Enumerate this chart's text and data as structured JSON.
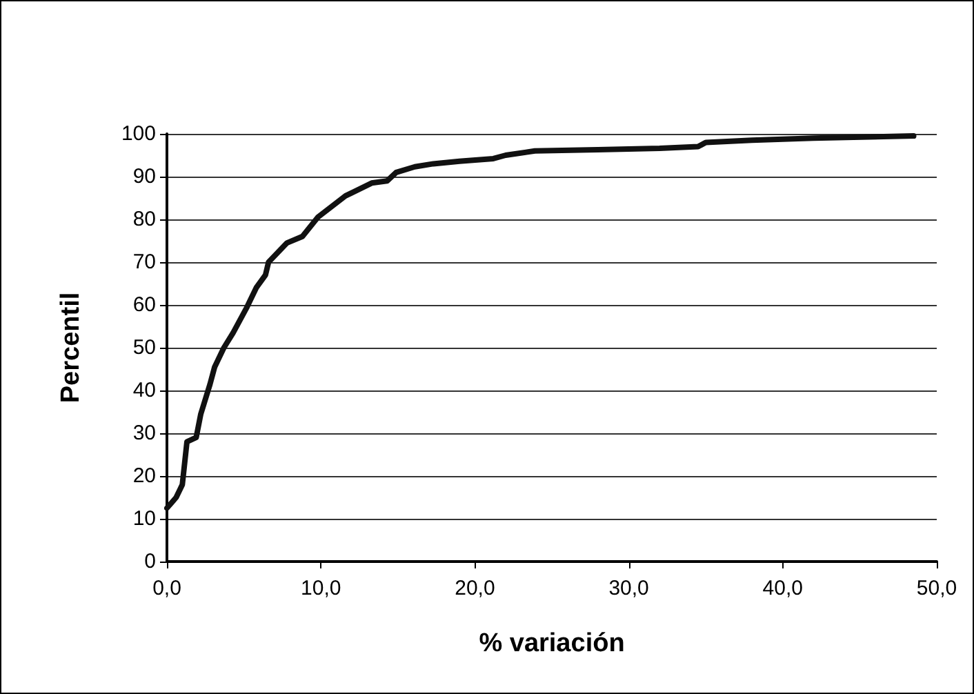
{
  "chart_data": {
    "type": "line",
    "xlabel": "% variación",
    "ylabel": "Percentil",
    "x": [
      0,
      0.6,
      1,
      1.3,
      1.9,
      2.2,
      2.8,
      3.1,
      3.7,
      4.3,
      5.2,
      5.8,
      6.4,
      6.6,
      7.8,
      8.8,
      9.8,
      10.7,
      11.6,
      13.3,
      14.3,
      14.9,
      16.1,
      17.3,
      19,
      21.2,
      22,
      23.9,
      28,
      32,
      34.5,
      35,
      38,
      42,
      48.5
    ],
    "series": [
      {
        "color": "#111111",
        "values": [
          12.5,
          15,
          18,
          28,
          29,
          34.5,
          41.5,
          45.5,
          50,
          53.5,
          59.5,
          64,
          67,
          70,
          74.5,
          76,
          80.5,
          83,
          85.5,
          88.5,
          89,
          91,
          92.3,
          93,
          93.6,
          94.2,
          95,
          96,
          96.3,
          96.6,
          97,
          98,
          98.5,
          99,
          99.5
        ]
      }
    ],
    "xlim": [
      0,
      50
    ],
    "xticks": [
      {
        "value": 0,
        "label": "0,0"
      },
      {
        "value": 10,
        "label": "10,0"
      },
      {
        "value": 20,
        "label": "20,0"
      },
      {
        "value": 30,
        "label": "30,0"
      },
      {
        "value": 40,
        "label": "40,0"
      },
      {
        "value": 50,
        "label": "50,0"
      }
    ],
    "ylim": [
      0,
      100
    ],
    "yticks": [
      0,
      10,
      20,
      30,
      40,
      50,
      60,
      70,
      80,
      90,
      100
    ],
    "grid": "y",
    "marker": "none",
    "line_style": "solid"
  }
}
